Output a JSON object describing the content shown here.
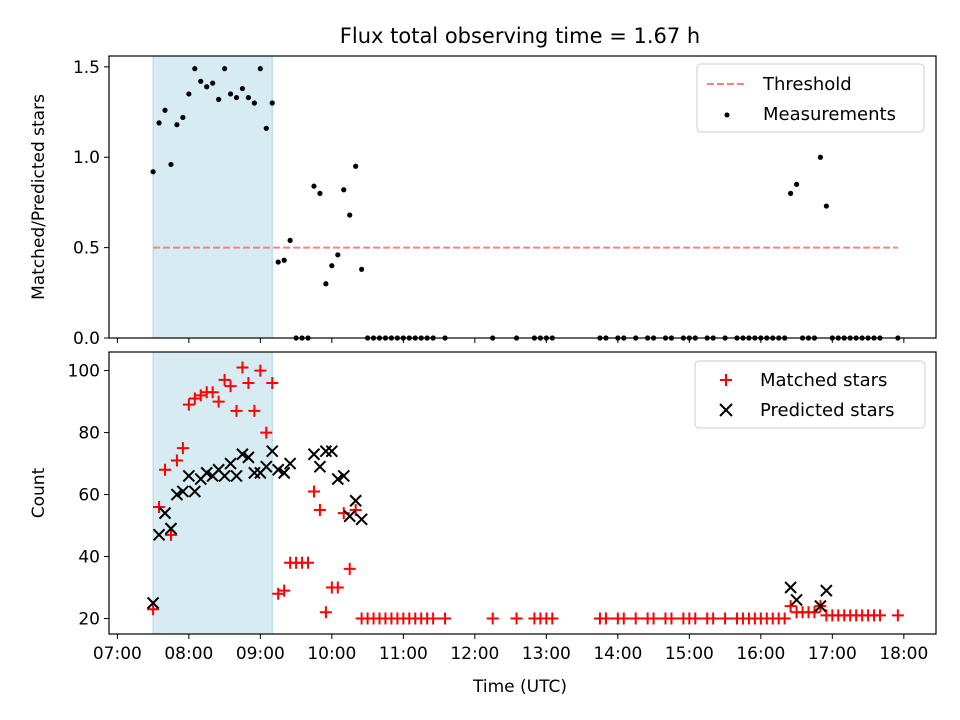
{
  "title": "Flux total observing time = 1.67 h",
  "colors": {
    "threshold": "#ff7f7f",
    "span": "#add8e6",
    "matched": "#ff0000",
    "predicted": "#000000",
    "measurement": "#000000"
  },
  "chart_data": [
    {
      "type": "scatter",
      "ylabel": "Matched/Predicted stars",
      "xlim": [
        "06:53",
        "18:27"
      ],
      "ylim": [
        0,
        1.56
      ],
      "yticks": [
        "0.0",
        "0.5",
        "1.0",
        "1.5"
      ],
      "shaded_span": [
        "07:30",
        "09:10"
      ],
      "legend_position": "top-right",
      "threshold": {
        "name": "Threshold",
        "y": 0.5,
        "x_range": [
          "07:30",
          "17:55"
        ]
      },
      "measurements": {
        "name": "Measurements",
        "points": [
          [
            "07:30",
            0.92
          ],
          [
            "07:35",
            1.19
          ],
          [
            "07:40",
            1.26
          ],
          [
            "07:45",
            0.96
          ],
          [
            "07:50",
            1.18
          ],
          [
            "07:55",
            1.22
          ],
          [
            "08:00",
            1.35
          ],
          [
            "08:05",
            1.49
          ],
          [
            "08:10",
            1.42
          ],
          [
            "08:15",
            1.39
          ],
          [
            "08:20",
            1.41
          ],
          [
            "08:25",
            1.32
          ],
          [
            "08:30",
            1.49
          ],
          [
            "08:35",
            1.35
          ],
          [
            "08:40",
            1.33
          ],
          [
            "08:45",
            1.38
          ],
          [
            "08:50",
            1.33
          ],
          [
            "08:55",
            1.3
          ],
          [
            "09:00",
            1.49
          ],
          [
            "09:05",
            1.16
          ],
          [
            "09:10",
            1.3
          ],
          [
            "09:15",
            0.42
          ],
          [
            "09:20",
            0.43
          ],
          [
            "09:25",
            0.54
          ],
          [
            "09:30",
            0
          ],
          [
            "09:35",
            0
          ],
          [
            "09:40",
            0
          ],
          [
            "09:45",
            0.84
          ],
          [
            "09:50",
            0.8
          ],
          [
            "09:55",
            0.3
          ],
          [
            "10:00",
            0.4
          ],
          [
            "10:05",
            0.46
          ],
          [
            "10:10",
            0.82
          ],
          [
            "10:15",
            0.68
          ],
          [
            "10:20",
            0.95
          ],
          [
            "10:25",
            0.38
          ],
          [
            "10:30",
            0
          ],
          [
            "10:35",
            0
          ],
          [
            "10:40",
            0
          ],
          [
            "10:45",
            0
          ],
          [
            "10:50",
            0
          ],
          [
            "10:55",
            0
          ],
          [
            "11:00",
            0
          ],
          [
            "11:05",
            0
          ],
          [
            "11:10",
            0
          ],
          [
            "11:15",
            0
          ],
          [
            "11:20",
            0
          ],
          [
            "11:25",
            0
          ],
          [
            "11:35",
            0
          ],
          [
            "12:15",
            0
          ],
          [
            "12:35",
            0
          ],
          [
            "12:50",
            0
          ],
          [
            "12:55",
            0
          ],
          [
            "13:00",
            0
          ],
          [
            "13:05",
            0
          ],
          [
            "13:45",
            0
          ],
          [
            "13:50",
            0
          ],
          [
            "14:00",
            0
          ],
          [
            "14:05",
            0
          ],
          [
            "14:15",
            0
          ],
          [
            "14:25",
            0
          ],
          [
            "14:30",
            0
          ],
          [
            "14:40",
            0
          ],
          [
            "14:45",
            0
          ],
          [
            "14:55",
            0
          ],
          [
            "15:00",
            0
          ],
          [
            "15:05",
            0
          ],
          [
            "15:15",
            0
          ],
          [
            "15:20",
            0
          ],
          [
            "15:30",
            0
          ],
          [
            "15:40",
            0
          ],
          [
            "15:45",
            0
          ],
          [
            "15:50",
            0
          ],
          [
            "15:55",
            0
          ],
          [
            "16:00",
            0
          ],
          [
            "16:05",
            0
          ],
          [
            "16:10",
            0
          ],
          [
            "16:15",
            0
          ],
          [
            "16:20",
            0
          ],
          [
            "16:25",
            0.8
          ],
          [
            "16:30",
            0.85
          ],
          [
            "16:35",
            0
          ],
          [
            "16:40",
            0
          ],
          [
            "16:45",
            0
          ],
          [
            "16:50",
            1.0
          ],
          [
            "16:55",
            0.73
          ],
          [
            "17:00",
            0
          ],
          [
            "17:05",
            0
          ],
          [
            "17:10",
            0
          ],
          [
            "17:15",
            0
          ],
          [
            "17:20",
            0
          ],
          [
            "17:25",
            0
          ],
          [
            "17:30",
            0
          ],
          [
            "17:35",
            0
          ],
          [
            "17:40",
            0
          ],
          [
            "17:55",
            0
          ]
        ]
      }
    },
    {
      "type": "scatter",
      "ylabel": "Count",
      "xlabel": "Time (UTC)",
      "xlim": [
        "06:53",
        "18:27"
      ],
      "xticks": [
        "07:00",
        "08:00",
        "09:00",
        "10:00",
        "11:00",
        "12:00",
        "13:00",
        "14:00",
        "15:00",
        "16:00",
        "17:00",
        "18:00"
      ],
      "ylim": [
        15,
        106
      ],
      "yticks": [
        "20",
        "40",
        "60",
        "80",
        "100"
      ],
      "shaded_span": [
        "07:30",
        "09:10"
      ],
      "legend_position": "top-right",
      "series": [
        {
          "name": "Matched stars",
          "marker": "plus",
          "points": [
            [
              "07:30",
              23
            ],
            [
              "07:35",
              56
            ],
            [
              "07:40",
              68
            ],
            [
              "07:45",
              47
            ],
            [
              "07:50",
              71
            ],
            [
              "07:55",
              75
            ],
            [
              "08:00",
              89
            ],
            [
              "08:05",
              91
            ],
            [
              "08:10",
              92
            ],
            [
              "08:15",
              93
            ],
            [
              "08:20",
              93
            ],
            [
              "08:25",
              90
            ],
            [
              "08:30",
              97
            ],
            [
              "08:35",
              95
            ],
            [
              "08:40",
              87
            ],
            [
              "08:45",
              101
            ],
            [
              "08:50",
              96
            ],
            [
              "08:55",
              87
            ],
            [
              "09:00",
              100
            ],
            [
              "09:05",
              80
            ],
            [
              "09:10",
              96
            ],
            [
              "09:15",
              28
            ],
            [
              "09:20",
              29
            ],
            [
              "09:25",
              38
            ],
            [
              "09:30",
              38
            ],
            [
              "09:35",
              38
            ],
            [
              "09:40",
              38
            ],
            [
              "09:45",
              61
            ],
            [
              "09:50",
              55
            ],
            [
              "09:55",
              22
            ],
            [
              "10:00",
              30
            ],
            [
              "10:05",
              30
            ],
            [
              "10:10",
              54
            ],
            [
              "10:15",
              36
            ],
            [
              "10:20",
              55
            ],
            [
              "10:25",
              20
            ],
            [
              "10:30",
              20
            ],
            [
              "10:35",
              20
            ],
            [
              "10:40",
              20
            ],
            [
              "10:45",
              20
            ],
            [
              "10:50",
              20
            ],
            [
              "10:55",
              20
            ],
            [
              "11:00",
              20
            ],
            [
              "11:05",
              20
            ],
            [
              "11:10",
              20
            ],
            [
              "11:15",
              20
            ],
            [
              "11:20",
              20
            ],
            [
              "11:25",
              20
            ],
            [
              "11:35",
              20
            ],
            [
              "12:15",
              20
            ],
            [
              "12:35",
              20
            ],
            [
              "12:50",
              20
            ],
            [
              "12:55",
              20
            ],
            [
              "13:00",
              20
            ],
            [
              "13:05",
              20
            ],
            [
              "13:45",
              20
            ],
            [
              "13:50",
              20
            ],
            [
              "14:00",
              20
            ],
            [
              "14:05",
              20
            ],
            [
              "14:15",
              20
            ],
            [
              "14:25",
              20
            ],
            [
              "14:30",
              20
            ],
            [
              "14:40",
              20
            ],
            [
              "14:45",
              20
            ],
            [
              "14:55",
              20
            ],
            [
              "15:00",
              20
            ],
            [
              "15:05",
              20
            ],
            [
              "15:15",
              20
            ],
            [
              "15:20",
              20
            ],
            [
              "15:30",
              20
            ],
            [
              "15:40",
              20
            ],
            [
              "15:45",
              20
            ],
            [
              "15:50",
              20
            ],
            [
              "15:55",
              20
            ],
            [
              "16:00",
              20
            ],
            [
              "16:05",
              20
            ],
            [
              "16:10",
              20
            ],
            [
              "16:15",
              20
            ],
            [
              "16:20",
              20
            ],
            [
              "16:25",
              24
            ],
            [
              "16:30",
              22
            ],
            [
              "16:35",
              22
            ],
            [
              "16:40",
              22
            ],
            [
              "16:45",
              22
            ],
            [
              "16:50",
              24
            ],
            [
              "16:55",
              21
            ],
            [
              "17:00",
              21
            ],
            [
              "17:05",
              21
            ],
            [
              "17:10",
              21
            ],
            [
              "17:15",
              21
            ],
            [
              "17:20",
              21
            ],
            [
              "17:25",
              21
            ],
            [
              "17:30",
              21
            ],
            [
              "17:35",
              21
            ],
            [
              "17:40",
              21
            ],
            [
              "17:55",
              21
            ]
          ]
        },
        {
          "name": "Predicted stars",
          "marker": "x",
          "points": [
            [
              "07:30",
              25
            ],
            [
              "07:35",
              47
            ],
            [
              "07:40",
              54
            ],
            [
              "07:45",
              49
            ],
            [
              "07:50",
              60
            ],
            [
              "07:55",
              61
            ],
            [
              "08:00",
              66
            ],
            [
              "08:05",
              61
            ],
            [
              "08:10",
              65
            ],
            [
              "08:15",
              67
            ],
            [
              "08:20",
              66
            ],
            [
              "08:25",
              68
            ],
            [
              "08:30",
              66
            ],
            [
              "08:35",
              70
            ],
            [
              "08:40",
              66
            ],
            [
              "08:45",
              73
            ],
            [
              "08:50",
              72
            ],
            [
              "08:55",
              67
            ],
            [
              "09:00",
              67
            ],
            [
              "09:05",
              69
            ],
            [
              "09:10",
              74
            ],
            [
              "09:15",
              68
            ],
            [
              "09:20",
              67
            ],
            [
              "09:25",
              70
            ],
            [
              "09:45",
              73
            ],
            [
              "09:50",
              69
            ],
            [
              "09:55",
              74
            ],
            [
              "10:00",
              74
            ],
            [
              "10:05",
              65
            ],
            [
              "10:10",
              66
            ],
            [
              "10:15",
              53
            ],
            [
              "10:20",
              58
            ],
            [
              "10:25",
              52
            ],
            [
              "16:25",
              30
            ],
            [
              "16:30",
              26
            ],
            [
              "16:50",
              24
            ],
            [
              "16:55",
              29
            ]
          ]
        }
      ]
    }
  ]
}
